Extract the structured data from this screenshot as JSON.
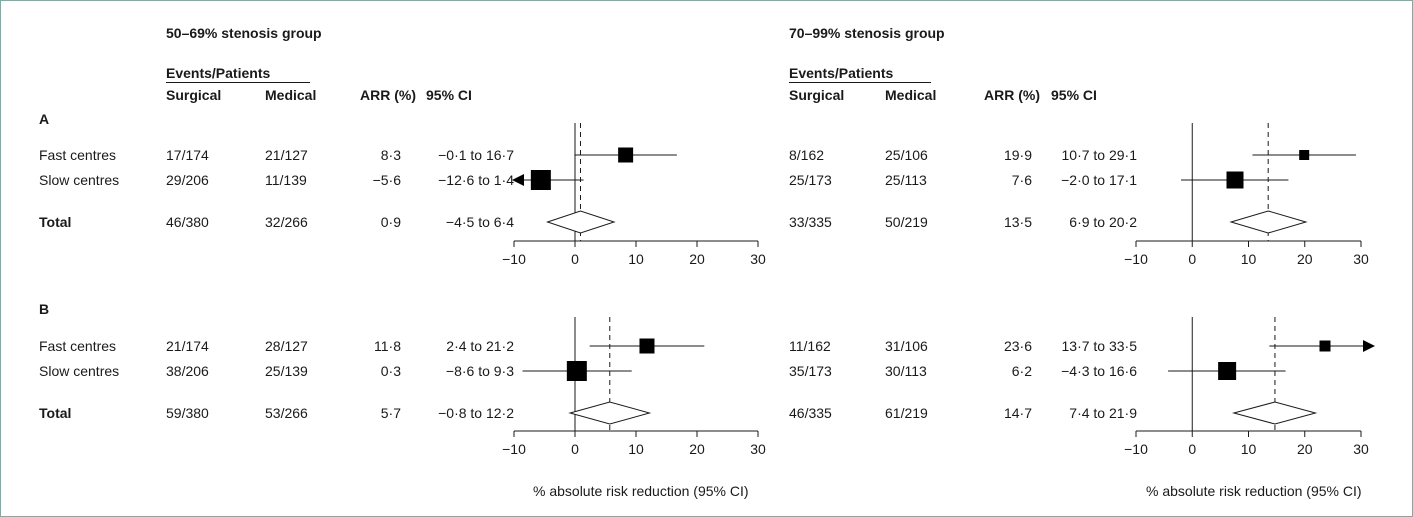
{
  "colors": {
    "border": "#6fb3a8",
    "ink": "#1a1a1a",
    "marker": "#000000"
  },
  "groups": [
    {
      "title": "50–69% stenosis group",
      "header_events": "Events/Patients",
      "col_surgical": "Surgical",
      "col_medical": "Medical",
      "col_arr": "ARR (%)",
      "col_ci": "95% CI"
    },
    {
      "title": "70–99% stenosis group",
      "header_events": "Events/Patients",
      "col_surgical": "Surgical",
      "col_medical": "Medical",
      "col_arr": "ARR (%)",
      "col_ci": "95% CI"
    }
  ],
  "panels": [
    {
      "label": "A",
      "rows": [
        {
          "name": "Fast centres",
          "bold": false,
          "g1": {
            "surgical": "17/174",
            "medical": "21/127",
            "arr": "8·3",
            "ci": "−0·1 to 16·7"
          },
          "g2": {
            "surgical": "8/162",
            "medical": "25/106",
            "arr": "19·9",
            "ci": "10·7 to 29·1"
          }
        },
        {
          "name": "Slow centres",
          "bold": false,
          "g1": {
            "surgical": "29/206",
            "medical": "11/139",
            "arr": "−5·6",
            "ci": "−12·6 to 1·4"
          },
          "g2": {
            "surgical": "25/173",
            "medical": "25/113",
            "arr": "7·6",
            "ci": "−2·0 to 17·1"
          }
        },
        {
          "name": "Total",
          "bold": true,
          "g1": {
            "surgical": "46/380",
            "medical": "32/266",
            "arr": "0·9",
            "ci": "−4·5 to 6·4"
          },
          "g2": {
            "surgical": "33/335",
            "medical": "50/219",
            "arr": "13·5",
            "ci": "6·9 to 20·2"
          }
        }
      ]
    },
    {
      "label": "B",
      "rows": [
        {
          "name": "Fast centres",
          "bold": false,
          "g1": {
            "surgical": "21/174",
            "medical": "28/127",
            "arr": "11·8",
            "ci": "2·4 to 21·2"
          },
          "g2": {
            "surgical": "11/162",
            "medical": "31/106",
            "arr": "23·6",
            "ci": "13·7 to 33·5"
          }
        },
        {
          "name": "Slow centres",
          "bold": false,
          "g1": {
            "surgical": "38/206",
            "medical": "25/139",
            "arr": "0·3",
            "ci": "−8·6 to 9·3"
          },
          "g2": {
            "surgical": "35/173",
            "medical": "30/113",
            "arr": "6·2",
            "ci": "−4·3 to 16·6"
          }
        },
        {
          "name": "Total",
          "bold": true,
          "g1": {
            "surgical": "59/380",
            "medical": "53/266",
            "arr": "5·7",
            "ci": "−0·8 to 12·2"
          },
          "g2": {
            "surgical": "46/335",
            "medical": "61/219",
            "arr": "14·7",
            "ci": "7·4 to 21·9"
          }
        }
      ]
    }
  ],
  "chart_data": [
    {
      "type": "forest",
      "panel": "A",
      "group": "50–69% stenosis group",
      "xlabel": "",
      "xlim": [
        -10,
        30
      ],
      "xticks": [
        -10,
        0,
        10,
        20,
        30
      ],
      "points": [
        {
          "label": "Fast centres",
          "value": 8.3,
          "lo": -0.1,
          "hi": 16.7,
          "marker": "square"
        },
        {
          "label": "Slow centres",
          "value": -5.6,
          "lo": -12.6,
          "hi": 1.4,
          "marker": "square",
          "clipped_low": true
        },
        {
          "label": "Total",
          "value": 0.9,
          "lo": -4.5,
          "hi": 6.4,
          "marker": "diamond"
        }
      ]
    },
    {
      "type": "forest",
      "panel": "A",
      "group": "70–99% stenosis group",
      "xlabel": "",
      "xlim": [
        -10,
        30
      ],
      "xticks": [
        -10,
        0,
        10,
        20,
        30
      ],
      "points": [
        {
          "label": "Fast centres",
          "value": 19.9,
          "lo": 10.7,
          "hi": 29.1,
          "marker": "square"
        },
        {
          "label": "Slow centres",
          "value": 7.6,
          "lo": -2.0,
          "hi": 17.1,
          "marker": "square"
        },
        {
          "label": "Total",
          "value": 13.5,
          "lo": 6.9,
          "hi": 20.2,
          "marker": "diamond"
        }
      ]
    },
    {
      "type": "forest",
      "panel": "B",
      "group": "50–69% stenosis group",
      "xlabel": "% absolute risk reduction (95% CI)",
      "xlim": [
        -10,
        30
      ],
      "xticks": [
        -10,
        0,
        10,
        20,
        30
      ],
      "points": [
        {
          "label": "Fast centres",
          "value": 11.8,
          "lo": 2.4,
          "hi": 21.2,
          "marker": "square"
        },
        {
          "label": "Slow centres",
          "value": 0.3,
          "lo": -8.6,
          "hi": 9.3,
          "marker": "square"
        },
        {
          "label": "Total",
          "value": 5.7,
          "lo": -0.8,
          "hi": 12.2,
          "marker": "diamond"
        }
      ]
    },
    {
      "type": "forest",
      "panel": "B",
      "group": "70–99% stenosis group",
      "xlabel": "% absolute risk reduction (95% CI)",
      "xlim": [
        -10,
        30
      ],
      "xticks": [
        -10,
        0,
        10,
        20,
        30
      ],
      "points": [
        {
          "label": "Fast centres",
          "value": 23.6,
          "lo": 13.7,
          "hi": 33.5,
          "marker": "square",
          "clipped_high": true
        },
        {
          "label": "Slow centres",
          "value": 6.2,
          "lo": -4.3,
          "hi": 16.6,
          "marker": "square"
        },
        {
          "label": "Total",
          "value": 14.7,
          "lo": 7.4,
          "hi": 21.9,
          "marker": "diamond"
        }
      ]
    }
  ]
}
